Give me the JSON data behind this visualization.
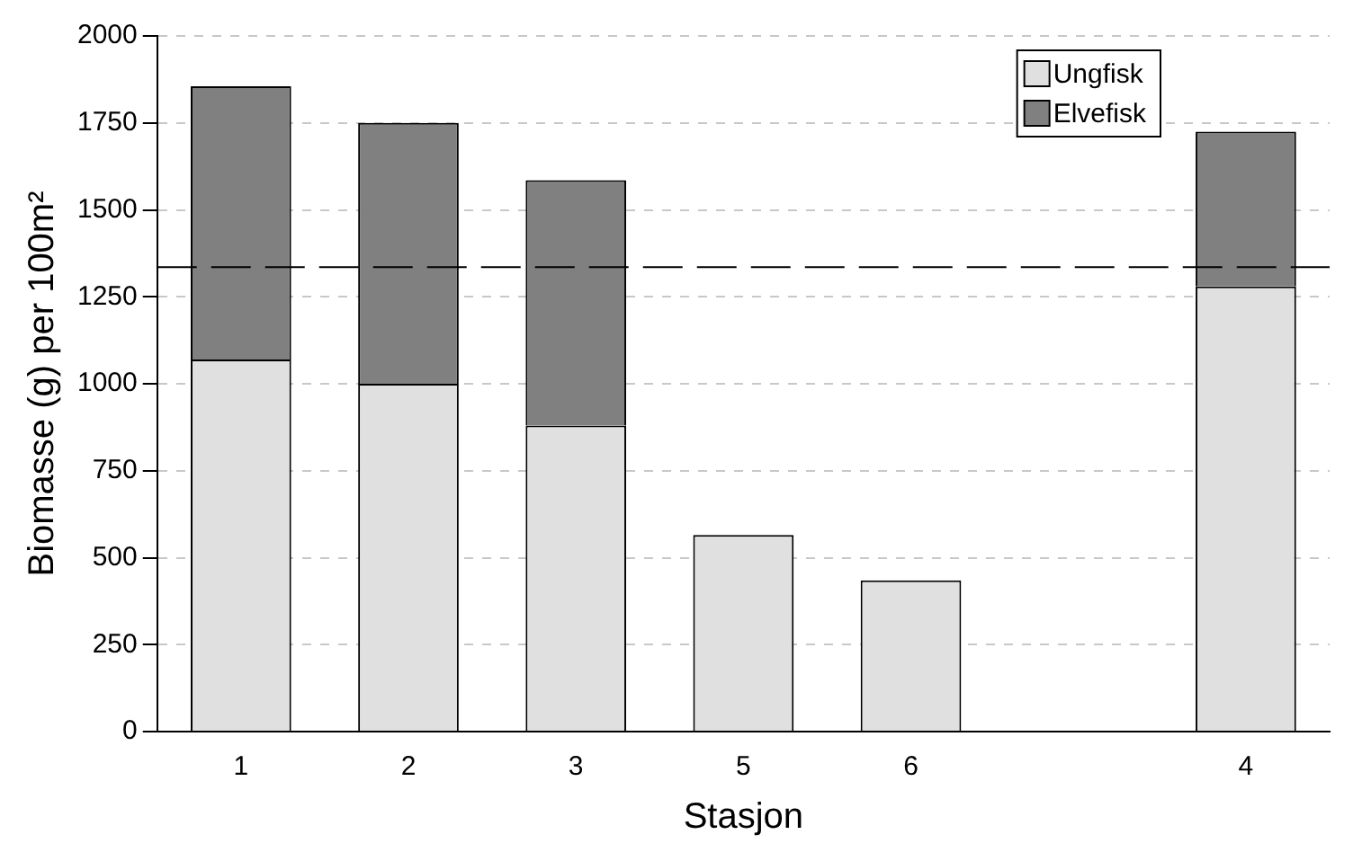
{
  "chart_data": {
    "type": "bar",
    "stacked": true,
    "xlabel": "Stasjon",
    "ylabel": "Biomasse (g) per 100m²",
    "categories": [
      "1",
      "2",
      "3",
      "5",
      "6",
      null,
      "4"
    ],
    "series": [
      {
        "name": "Ungfisk",
        "color": "#e0e0e0",
        "values": [
          1070,
          1000,
          880,
          565,
          435,
          null,
          1280
        ]
      },
      {
        "name": "Elvefisk",
        "color": "#808080",
        "values": [
          785,
          750,
          705,
          0,
          0,
          null,
          445
        ]
      }
    ],
    "ylim": [
      0,
      2000
    ],
    "yticks": [
      0,
      250,
      500,
      750,
      1000,
      1250,
      1500,
      1750,
      2000
    ],
    "grid": "y",
    "legend": "top right",
    "ref_lines": [
      {
        "axis": "y",
        "value": 1335,
        "color": "#000000",
        "line_style": "dashed"
      }
    ]
  }
}
